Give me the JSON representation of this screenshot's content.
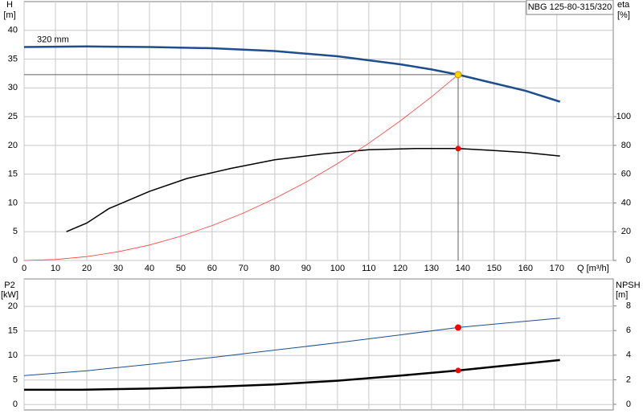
{
  "chart_data": [
    {
      "type": "line",
      "legend_box": "NBG 125-80-315/320",
      "y_label": "H",
      "y_unit": "[m]",
      "y2_label": "eta",
      "y2_unit": "[%]",
      "x_label": "Q [m³/h]",
      "curve_label": "320 mm",
      "xlim": [
        0,
        188
      ],
      "xticks": [
        0,
        10,
        20,
        30,
        40,
        50,
        60,
        70,
        80,
        90,
        100,
        110,
        120,
        130,
        140,
        150,
        160,
        170
      ],
      "ylim": [
        0,
        45
      ],
      "yticks": [
        0,
        5,
        10,
        15,
        20,
        25,
        30,
        35,
        40
      ],
      "y2lim": [
        0,
        180
      ],
      "y2ticks": [
        0,
        20,
        40,
        60,
        80,
        100
      ],
      "grid": true,
      "series": [
        {
          "color": "#1f4e8c",
          "axis": "y",
          "x": [
            0,
            20,
            40,
            60,
            80,
            100,
            120,
            130,
            138.5,
            150,
            160,
            171
          ],
          "values": [
            37.1,
            37.2,
            37.1,
            36.9,
            36.4,
            35.5,
            34.1,
            33.2,
            32.3,
            30.8,
            29.5,
            27.6
          ]
        },
        {
          "color": "#000000",
          "axis": "y2",
          "x": [
            13.5,
            20,
            27,
            40,
            52,
            66,
            80,
            95,
            110,
            125,
            138.5,
            150,
            160,
            171
          ],
          "values": [
            20,
            26,
            36,
            48,
            57,
            64,
            70,
            74,
            77,
            77.8,
            77.8,
            76.5,
            75,
            72.6
          ]
        },
        {
          "color": "#ff4040",
          "axis": "y",
          "x": [
            0,
            10,
            20,
            30,
            40,
            50,
            60,
            70,
            80,
            90,
            100,
            110,
            120,
            130,
            138.5
          ],
          "values": [
            0,
            0.17,
            0.67,
            1.51,
            2.69,
            4.21,
            6.06,
            8.24,
            10.77,
            13.63,
            16.84,
            20.37,
            24.24,
            28.45,
            32.3
          ]
        }
      ],
      "operating_point": {
        "x": 138.5,
        "y": 32.3,
        "y2": 77.8
      }
    },
    {
      "type": "line",
      "y_label": "P2",
      "y_unit": "[kW]",
      "y2_label": "NPSH",
      "y2_unit": "[m]",
      "xlim": [
        0,
        188
      ],
      "xticks": [
        0,
        10,
        20,
        30,
        40,
        50,
        60,
        70,
        80,
        90,
        100,
        110,
        120,
        130,
        140,
        150,
        160,
        170
      ],
      "ylim": [
        -1.1,
        25.6
      ],
      "yticks": [
        0,
        5,
        10,
        15,
        20
      ],
      "y2lim": [
        -0.46,
        10.2
      ],
      "y2ticks": [
        0,
        2,
        4,
        6,
        8
      ],
      "grid": true,
      "series": [
        {
          "color": "#1f4e8c",
          "axis": "y",
          "x": [
            0,
            20,
            40,
            60,
            80,
            100,
            120,
            138.5,
            150,
            171
          ],
          "values": [
            5.9,
            6.9,
            8.2,
            9.6,
            11.1,
            12.6,
            14.2,
            15.7,
            16.4,
            17.6
          ]
        },
        {
          "color": "#000000",
          "axis": "y2",
          "x": [
            0,
            18,
            40,
            60,
            80,
            100,
            120,
            138.5,
            150,
            171
          ],
          "values": [
            1.18,
            1.18,
            1.28,
            1.42,
            1.62,
            1.92,
            2.33,
            2.75,
            3.05,
            3.6
          ]
        }
      ],
      "operating_point": {
        "x": 138.5,
        "y": 15.7,
        "y2": 2.75
      }
    }
  ]
}
